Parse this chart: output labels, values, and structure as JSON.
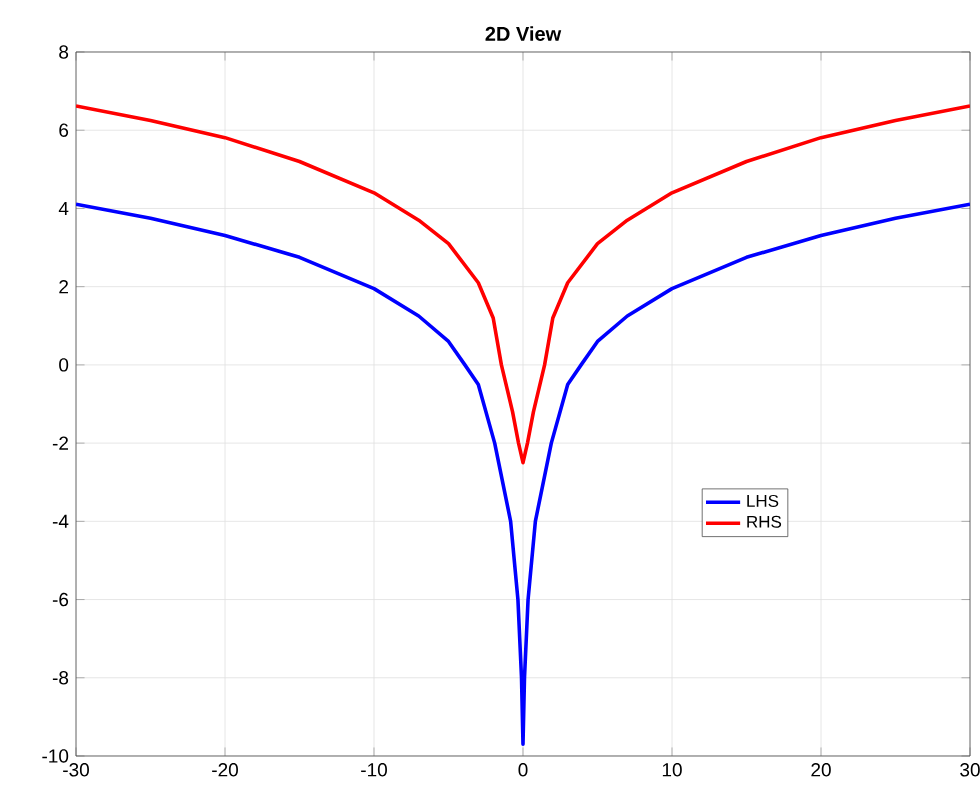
{
  "chart_data": {
    "type": "line",
    "title": "2D View",
    "xlim": [
      -30,
      30
    ],
    "xticks": [
      -30,
      -20,
      -10,
      0,
      10,
      20,
      30
    ],
    "ylim": [
      -10,
      8
    ],
    "yticks": [
      -10,
      -8,
      -6,
      -4,
      -2,
      0,
      2,
      4,
      6,
      8
    ],
    "grid": true,
    "legend": "right",
    "series": [
      {
        "name": "LHS",
        "color": "#0000ff",
        "x": [
          -30,
          -25,
          -20,
          -15,
          -10,
          -7,
          -5,
          -3.9,
          -3,
          -1.9,
          -0.83,
          -0.34,
          -0.1,
          0,
          0.1,
          0.34,
          0.83,
          1.9,
          3,
          3.9,
          5,
          7,
          10,
          15,
          20,
          25,
          30
        ],
        "values": [
          4.11,
          3.75,
          3.31,
          2.75,
          1.95,
          1.25,
          0.6,
          0,
          -0.5,
          -2,
          -4,
          -6,
          -8,
          -9.7,
          -8,
          -6,
          -4,
          -2,
          -0.5,
          0,
          0.6,
          1.25,
          1.95,
          2.75,
          3.31,
          3.75,
          4.11
        ]
      },
      {
        "name": "RHS",
        "color": "#ff0000",
        "x": [
          -30,
          -25,
          -20,
          -15,
          -10,
          -7,
          -5,
          -3,
          -2,
          -1.45,
          -0.7,
          -0.3,
          0,
          0.3,
          0.7,
          1.45,
          2,
          3,
          5,
          7,
          10,
          15,
          20,
          25,
          30
        ],
        "values": [
          6.62,
          6.25,
          5.81,
          5.2,
          4.4,
          3.7,
          3.1,
          2.1,
          1.2,
          0,
          -1.2,
          -2,
          -2.5,
          -2,
          -1.2,
          0,
          1.2,
          2.1,
          3.1,
          3.7,
          4.4,
          5.2,
          5.81,
          6.25,
          6.62
        ]
      }
    ]
  }
}
